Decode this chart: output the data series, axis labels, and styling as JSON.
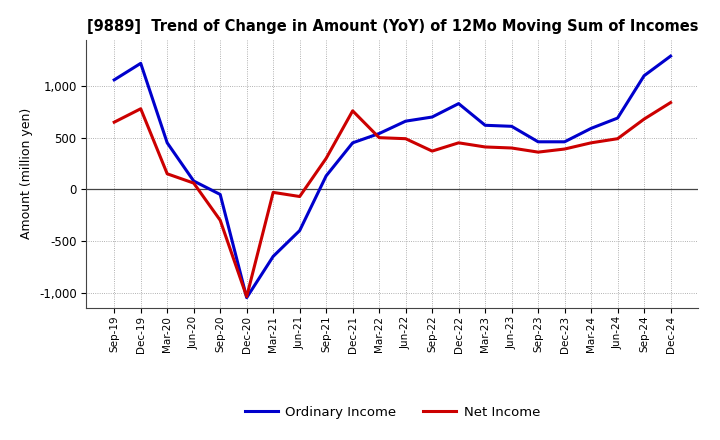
{
  "title": "[9889]  Trend of Change in Amount (YoY) of 12Mo Moving Sum of Incomes",
  "ylabel": "Amount (million yen)",
  "x_labels": [
    "Sep-19",
    "Dec-19",
    "Mar-20",
    "Jun-20",
    "Sep-20",
    "Dec-20",
    "Mar-21",
    "Jun-21",
    "Sep-21",
    "Dec-21",
    "Mar-22",
    "Jun-22",
    "Sep-22",
    "Dec-22",
    "Mar-23",
    "Jun-23",
    "Sep-23",
    "Dec-23",
    "Mar-24",
    "Jun-24",
    "Sep-24",
    "Dec-24"
  ],
  "ordinary_income": [
    1060,
    1220,
    450,
    80,
    -50,
    -1050,
    -650,
    -400,
    130,
    450,
    540,
    660,
    700,
    830,
    620,
    610,
    460,
    460,
    590,
    690,
    1100,
    1290
  ],
  "net_income": [
    650,
    780,
    150,
    60,
    -300,
    -1040,
    -30,
    -70,
    300,
    760,
    500,
    490,
    370,
    450,
    410,
    400,
    360,
    390,
    450,
    490,
    680,
    840
  ],
  "ordinary_color": "#0000cc",
  "net_color": "#cc0000",
  "ylim": [
    -1150,
    1450
  ],
  "yticks": [
    -1000,
    -500,
    0,
    500,
    1000
  ],
  "bg_color": "#ffffff",
  "grid_color": "#999999",
  "legend_labels": [
    "Ordinary Income",
    "Net Income"
  ]
}
